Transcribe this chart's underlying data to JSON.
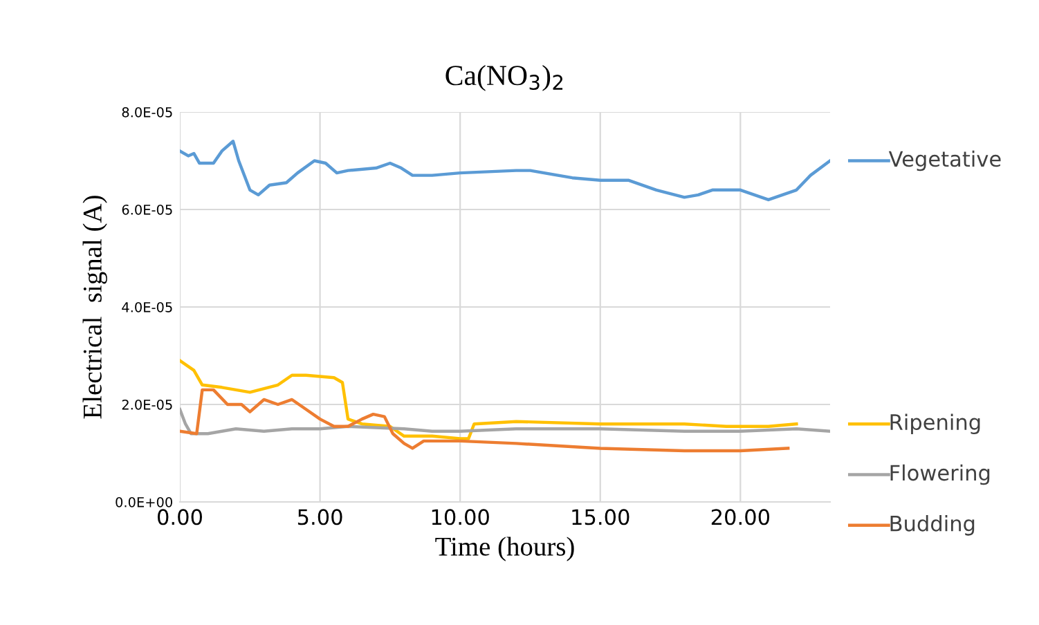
{
  "chart_data": {
    "type": "line",
    "title": "Ca(NO$_{3}$)$_{2}$",
    "xlabel": "Time (hours)",
    "ylabel": "Electrical  signal (A)",
    "xlim": [
      0,
      23.2
    ],
    "xticks": [
      {
        "value": 0,
        "label": "0.00"
      },
      {
        "value": 5,
        "label": "5.00"
      },
      {
        "value": 10,
        "label": "10.00"
      },
      {
        "value": 15,
        "label": "15.00"
      },
      {
        "value": 20,
        "label": "20.00"
      }
    ],
    "ylim": [
      0,
      8e-05
    ],
    "yticks": [
      {
        "value": 0,
        "label": "0.0E+00"
      },
      {
        "value": 2e-05,
        "label": "2.0E-05"
      },
      {
        "value": 4e-05,
        "label": "4.0E-05"
      },
      {
        "value": 6e-05,
        "label": "6.0E-05"
      },
      {
        "value": 8e-05,
        "label": "8.0E-05"
      }
    ],
    "grid": true,
    "legend": "right",
    "line_style": "solid",
    "series": [
      {
        "name": "Vegetative",
        "color": "#5b9bd5",
        "x": [
          0,
          0.3,
          0.5,
          0.7,
          1.2,
          1.5,
          1.9,
          2.1,
          2.5,
          2.8,
          3.2,
          3.8,
          4.2,
          4.8,
          5.2,
          5.6,
          6,
          7,
          7.5,
          7.9,
          8.3,
          9,
          10,
          12,
          12.5,
          14,
          15,
          16,
          17,
          18,
          18.5,
          19,
          20,
          20.5,
          21,
          21.5,
          22,
          22.5,
          23.2
        ],
        "values": [
          7.2e-05,
          7.1e-05,
          7.15e-05,
          6.95e-05,
          6.95e-05,
          7.2e-05,
          7.4e-05,
          7e-05,
          6.4e-05,
          6.3e-05,
          6.5e-05,
          6.55e-05,
          6.75e-05,
          7e-05,
          6.95e-05,
          6.75e-05,
          6.8e-05,
          6.85e-05,
          6.95e-05,
          6.85e-05,
          6.7e-05,
          6.7e-05,
          6.75e-05,
          6.8e-05,
          6.8e-05,
          6.65e-05,
          6.6e-05,
          6.6e-05,
          6.4e-05,
          6.25e-05,
          6.3e-05,
          6.4e-05,
          6.4e-05,
          6.3e-05,
          6.2e-05,
          6.3e-05,
          6.4e-05,
          6.7e-05,
          7e-05
        ]
      },
      {
        "name": "Ripening",
        "color": "#ffc000",
        "x": [
          0,
          0.5,
          0.8,
          1.5,
          2.5,
          3.5,
          4,
          4.5,
          5.5,
          5.8,
          6.0,
          6.5,
          7.5,
          8,
          9,
          10,
          10.3,
          10.5,
          12,
          15,
          18,
          19.5,
          21,
          22
        ],
        "values": [
          2.9e-05,
          2.7e-05,
          2.4e-05,
          2.35e-05,
          2.25e-05,
          2.4e-05,
          2.6e-05,
          2.6e-05,
          2.55e-05,
          2.45e-05,
          1.7e-05,
          1.6e-05,
          1.55e-05,
          1.35e-05,
          1.35e-05,
          1.3e-05,
          1.3e-05,
          1.6e-05,
          1.65e-05,
          1.6e-05,
          1.6e-05,
          1.55e-05,
          1.55e-05,
          1.6e-05
        ]
      },
      {
        "name": "Flowering",
        "color": "#a5a5a5",
        "x": [
          0,
          0.2,
          0.4,
          1,
          2,
          3,
          4,
          5,
          6,
          8,
          9,
          10,
          12,
          15,
          18,
          20,
          22,
          23.2
        ],
        "values": [
          1.9e-05,
          1.6e-05,
          1.4e-05,
          1.4e-05,
          1.5e-05,
          1.45e-05,
          1.5e-05,
          1.5e-05,
          1.55e-05,
          1.5e-05,
          1.45e-05,
          1.45e-05,
          1.5e-05,
          1.5e-05,
          1.45e-05,
          1.45e-05,
          1.5e-05,
          1.45e-05
        ]
      },
      {
        "name": "Budding",
        "color": "#ed7d31",
        "x": [
          0,
          0.6,
          0.8,
          1.2,
          1.7,
          2.2,
          2.5,
          3,
          3.5,
          4,
          4.5,
          5,
          5.5,
          6,
          6.5,
          6.9,
          7.3,
          7.6,
          8,
          8.3,
          8.7,
          10,
          12,
          15,
          18,
          20,
          21.7
        ],
        "values": [
          1.45e-05,
          1.4e-05,
          2.3e-05,
          2.3e-05,
          2e-05,
          2e-05,
          1.85e-05,
          2.1e-05,
          2e-05,
          2.1e-05,
          1.9e-05,
          1.7e-05,
          1.55e-05,
          1.55e-05,
          1.7e-05,
          1.8e-05,
          1.75e-05,
          1.4e-05,
          1.2e-05,
          1.1e-05,
          1.25e-05,
          1.25e-05,
          1.2e-05,
          1.1e-05,
          1.05e-05,
          1.05e-05,
          1.1e-05
        ]
      }
    ]
  }
}
